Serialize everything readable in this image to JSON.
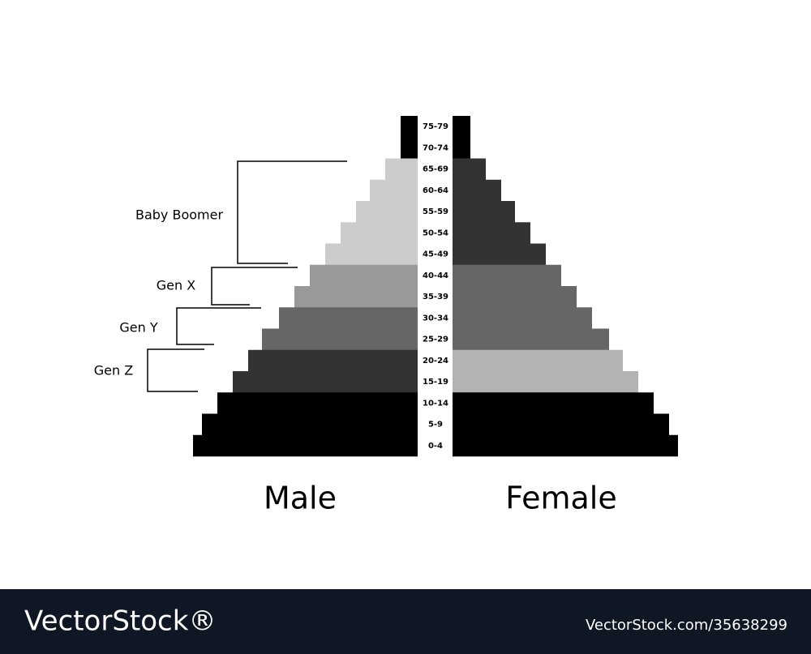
{
  "chart_data": {
    "type": "population-pyramid",
    "categories": [
      "75-79",
      "70-74",
      "65-69",
      "60-64",
      "55-59",
      "50-54",
      "45-49",
      "40-44",
      "35-39",
      "30-34",
      "25-29",
      "20-24",
      "15-19",
      "10-14",
      "5-9",
      "0-4"
    ],
    "series": [
      {
        "name": "Male",
        "side": "left",
        "values": [
          21,
          21,
          40,
          59,
          76,
          95,
          114,
          133,
          152,
          171,
          192,
          209,
          228,
          247,
          266,
          277
        ],
        "colors": [
          "#000000",
          "#000000",
          "#cccccc",
          "#cccccc",
          "#cccccc",
          "#cccccc",
          "#cccccc",
          "#999999",
          "#999999",
          "#666666",
          "#666666",
          "#333333",
          "#333333",
          "#000000",
          "#000000",
          "#000000"
        ]
      },
      {
        "name": "Female",
        "side": "right",
        "values": [
          22,
          22,
          41,
          60,
          77,
          96,
          115,
          134,
          153,
          172,
          193,
          210,
          229,
          248,
          267,
          278
        ],
        "colors": [
          "#000000",
          "#000000",
          "#333333",
          "#333333",
          "#333333",
          "#333333",
          "#333333",
          "#666666",
          "#666666",
          "#666666",
          "#666666",
          "#b3b3b3",
          "#b3b3b3",
          "#000000",
          "#000000",
          "#000000"
        ]
      }
    ],
    "annotations": [
      "Baby Boomer",
      "Gen X",
      "Gen Y",
      "Gen Z"
    ]
  },
  "footer": {
    "brand": "VectorStock®",
    "id": "VectorStock.com/35638299"
  }
}
